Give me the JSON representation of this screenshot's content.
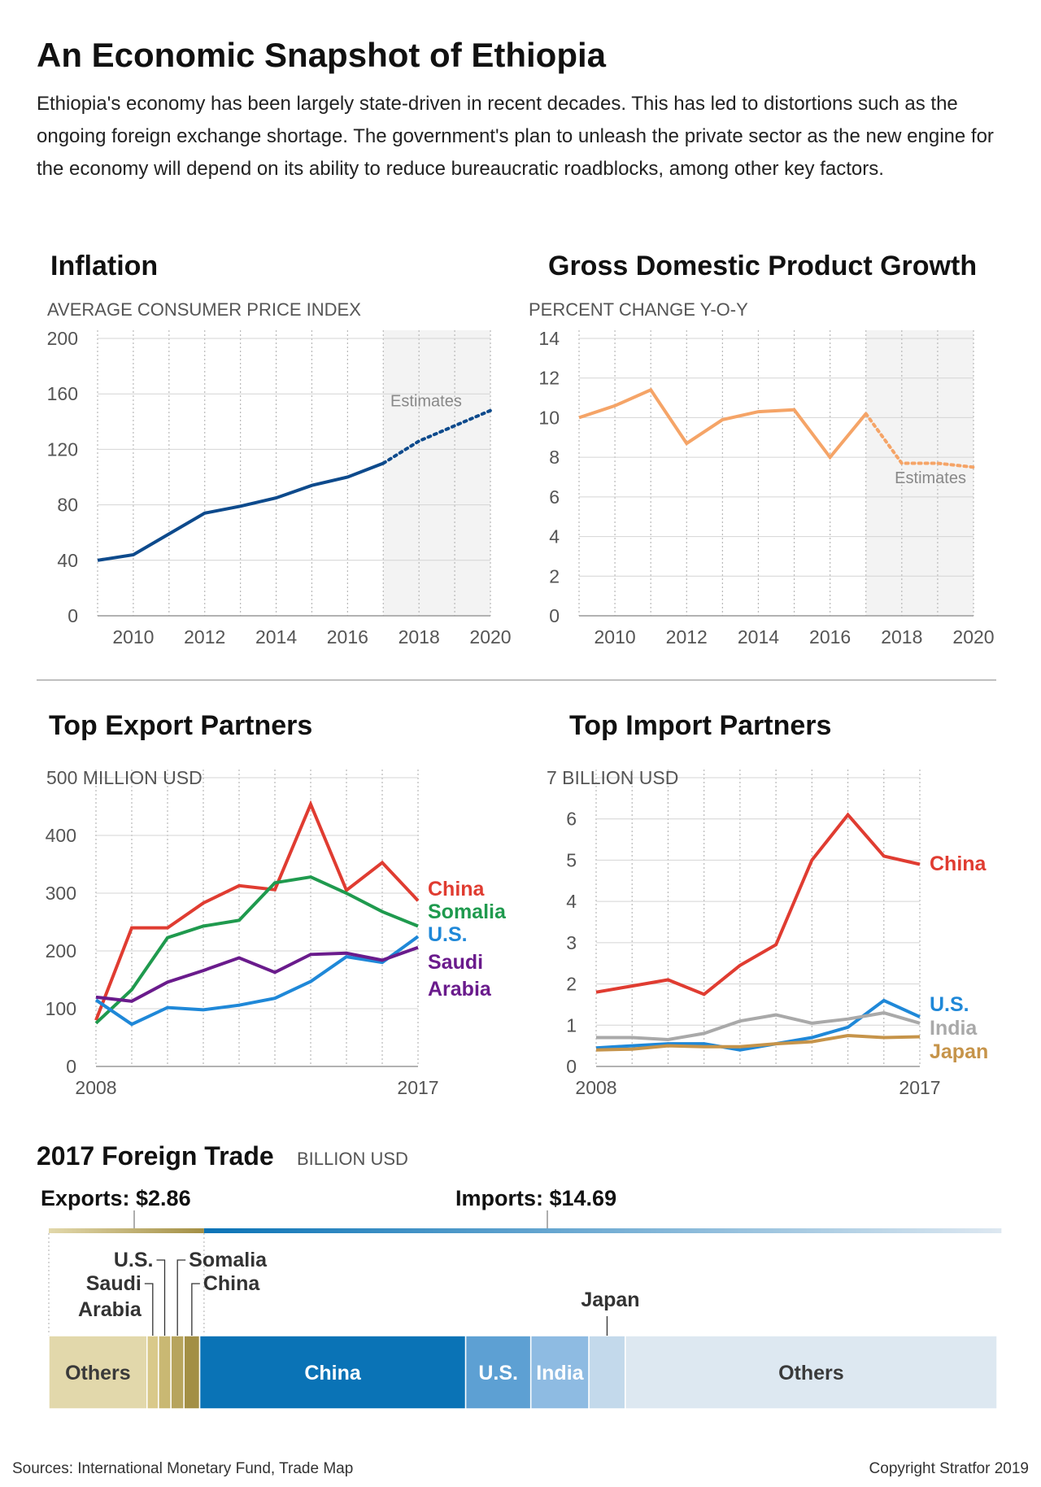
{
  "header": {
    "title": "An Economic Snapshot of Ethiopia",
    "subtitle": "Ethiopia's economy has been largely state-driven in recent decades. This has led to distortions such as the ongoing foreign exchange shortage. The government's plan to unleash the private sector as the new engine for the economy will depend on its ability to reduce bureaucratic roadblocks, among other key factors."
  },
  "footer": {
    "sources": "Sources: International Monetary Fund, Trade Map",
    "copyright": "Copyright Stratfor 2019"
  },
  "chart_data": [
    {
      "id": "inflation",
      "type": "line",
      "title": "Inflation",
      "ylabel": "AVERAGE CONSUMER PRICE INDEX",
      "xlim": [
        2009,
        2020
      ],
      "ylim": [
        0,
        200
      ],
      "xticks": [
        2010,
        2012,
        2014,
        2016,
        2018,
        2020
      ],
      "yticks": [
        0,
        40,
        80,
        120,
        160,
        200
      ],
      "estimate_from": 2017,
      "estimate_label": "Estimates",
      "series": [
        {
          "color": "#0d4a8c",
          "x": [
            2009,
            2010,
            2011,
            2012,
            2013,
            2014,
            2015,
            2016,
            2017,
            2018,
            2019,
            2020
          ],
          "y": [
            40,
            44,
            59,
            74,
            79,
            85,
            94,
            100,
            110,
            126,
            137,
            148
          ]
        }
      ]
    },
    {
      "id": "gdp",
      "type": "line",
      "title": "Gross Domestic Product Growth",
      "ylabel": "PERCENT CHANGE Y-O-Y",
      "xlim": [
        2009,
        2020
      ],
      "ylim": [
        0,
        14
      ],
      "xticks": [
        2010,
        2012,
        2014,
        2016,
        2018,
        2020
      ],
      "yticks": [
        0,
        2,
        4,
        6,
        8,
        10,
        12,
        14
      ],
      "estimate_from": 2017,
      "estimate_label": "Estimates",
      "series": [
        {
          "color": "#f5a467",
          "x": [
            2009,
            2010,
            2011,
            2012,
            2013,
            2014,
            2015,
            2016,
            2017,
            2018,
            2019,
            2020
          ],
          "y": [
            10.0,
            10.6,
            11.4,
            8.7,
            9.9,
            10.3,
            10.4,
            8.0,
            10.2,
            7.7,
            7.7,
            7.5
          ]
        }
      ]
    },
    {
      "id": "exports",
      "type": "line",
      "title": "Top Export Partners",
      "ylabel": "MILLION USD",
      "xlim": [
        2008,
        2017
      ],
      "ylim": [
        0,
        500
      ],
      "xticks": [
        2008,
        2017
      ],
      "yticks": [
        0,
        100,
        200,
        300,
        400,
        500
      ],
      "series": [
        {
          "name": "China",
          "color": "#e03c31",
          "x": [
            2008,
            2009,
            2010,
            2011,
            2012,
            2013,
            2014,
            2015,
            2016,
            2017
          ],
          "y": [
            80,
            240,
            240,
            283,
            313,
            306,
            454,
            305,
            353,
            287
          ]
        },
        {
          "name": "Somalia",
          "color": "#1f9a4e",
          "x": [
            2008,
            2009,
            2010,
            2011,
            2012,
            2013,
            2014,
            2015,
            2016,
            2017
          ],
          "y": [
            75,
            133,
            223,
            243,
            253,
            318,
            328,
            300,
            268,
            243
          ]
        },
        {
          "name": "U.S.",
          "color": "#1f88d8",
          "x": [
            2008,
            2009,
            2010,
            2011,
            2012,
            2013,
            2014,
            2015,
            2016,
            2017
          ],
          "y": [
            115,
            73,
            102,
            98,
            106,
            118,
            147,
            190,
            180,
            225
          ]
        },
        {
          "name": "Saudi Arabia",
          "label_lines": [
            "Saudi",
            "Arabia"
          ],
          "color": "#6a1b8c",
          "x": [
            2008,
            2009,
            2010,
            2011,
            2012,
            2013,
            2014,
            2015,
            2016,
            2017
          ],
          "y": [
            120,
            113,
            146,
            166,
            188,
            163,
            194,
            196,
            184,
            206
          ]
        }
      ]
    },
    {
      "id": "imports",
      "type": "line",
      "title": "Top Import Partners",
      "ylabel": "BILLION USD",
      "xlim": [
        2008,
        2017
      ],
      "ylim": [
        0,
        7
      ],
      "xticks": [
        2008,
        2017
      ],
      "yticks": [
        0,
        1,
        2,
        3,
        4,
        5,
        6,
        7
      ],
      "series": [
        {
          "name": "China",
          "color": "#e03c31",
          "x": [
            2008,
            2009,
            2010,
            2011,
            2012,
            2013,
            2014,
            2015,
            2016,
            2017
          ],
          "y": [
            1.8,
            1.95,
            2.1,
            1.75,
            2.45,
            2.95,
            5.0,
            6.1,
            5.1,
            4.9
          ]
        },
        {
          "name": "U.S.",
          "color": "#1f88d8",
          "x": [
            2008,
            2009,
            2010,
            2011,
            2012,
            2013,
            2014,
            2015,
            2016,
            2017
          ],
          "y": [
            0.45,
            0.5,
            0.55,
            0.55,
            0.4,
            0.55,
            0.7,
            0.95,
            1.6,
            1.2
          ]
        },
        {
          "name": "India",
          "color": "#a9a9a9",
          "x": [
            2008,
            2009,
            2010,
            2011,
            2012,
            2013,
            2014,
            2015,
            2016,
            2017
          ],
          "y": [
            0.7,
            0.7,
            0.65,
            0.8,
            1.1,
            1.25,
            1.05,
            1.15,
            1.3,
            1.05
          ]
        },
        {
          "name": "Japan",
          "color": "#c6944a",
          "x": [
            2008,
            2009,
            2010,
            2011,
            2012,
            2013,
            2014,
            2015,
            2016,
            2017
          ],
          "y": [
            0.4,
            0.42,
            0.5,
            0.48,
            0.48,
            0.55,
            0.6,
            0.75,
            0.7,
            0.72
          ]
        }
      ]
    },
    {
      "id": "foreign_trade_2017",
      "type": "bar",
      "orientation": "stacked-horizontal",
      "title": "2017 Foreign Trade",
      "unit": "BILLION USD",
      "exports_label": "Exports: $2.86",
      "imports_label": "Imports: $14.69",
      "exports_total": 2.86,
      "imports_total": 14.69,
      "segments": [
        {
          "group": "exports",
          "name": "Others",
          "value": 1.81,
          "color": "#e2d8ab",
          "text_color": "#3a3a3a",
          "label": "Others"
        },
        {
          "group": "exports",
          "name": "Saudi Arabia",
          "value": 0.21,
          "color": "#d9c98a",
          "label_lines": [
            "Saudi",
            "Arabia"
          ]
        },
        {
          "group": "exports",
          "name": "U.S.",
          "value": 0.23,
          "color": "#c9b873",
          "label_lines": [
            "U.S."
          ]
        },
        {
          "group": "exports",
          "name": "Somalia",
          "value": 0.24,
          "color": "#b7a45d",
          "label_lines": [
            "Somalia"
          ]
        },
        {
          "group": "exports",
          "name": "China",
          "value": 0.29,
          "color": "#a38f45",
          "label_lines": [
            "China"
          ]
        },
        {
          "group": "imports",
          "name": "China",
          "value": 4.9,
          "color": "#0a73b6",
          "text_color": "#ffffff",
          "label": "China"
        },
        {
          "group": "imports",
          "name": "U.S.",
          "value": 1.2,
          "color": "#5da0d3",
          "text_color": "#ffffff",
          "label": "U.S."
        },
        {
          "group": "imports",
          "name": "India",
          "value": 1.07,
          "color": "#8ebbe2",
          "text_color": "#ffffff",
          "label": "India"
        },
        {
          "group": "imports",
          "name": "Japan",
          "value": 0.67,
          "color": "#c3d9eb",
          "label_lines": [
            "Japan"
          ]
        },
        {
          "group": "imports",
          "name": "Others",
          "value": 6.85,
          "color": "#dde8f1",
          "text_color": "#3a3a3a",
          "label": "Others"
        }
      ]
    }
  ]
}
